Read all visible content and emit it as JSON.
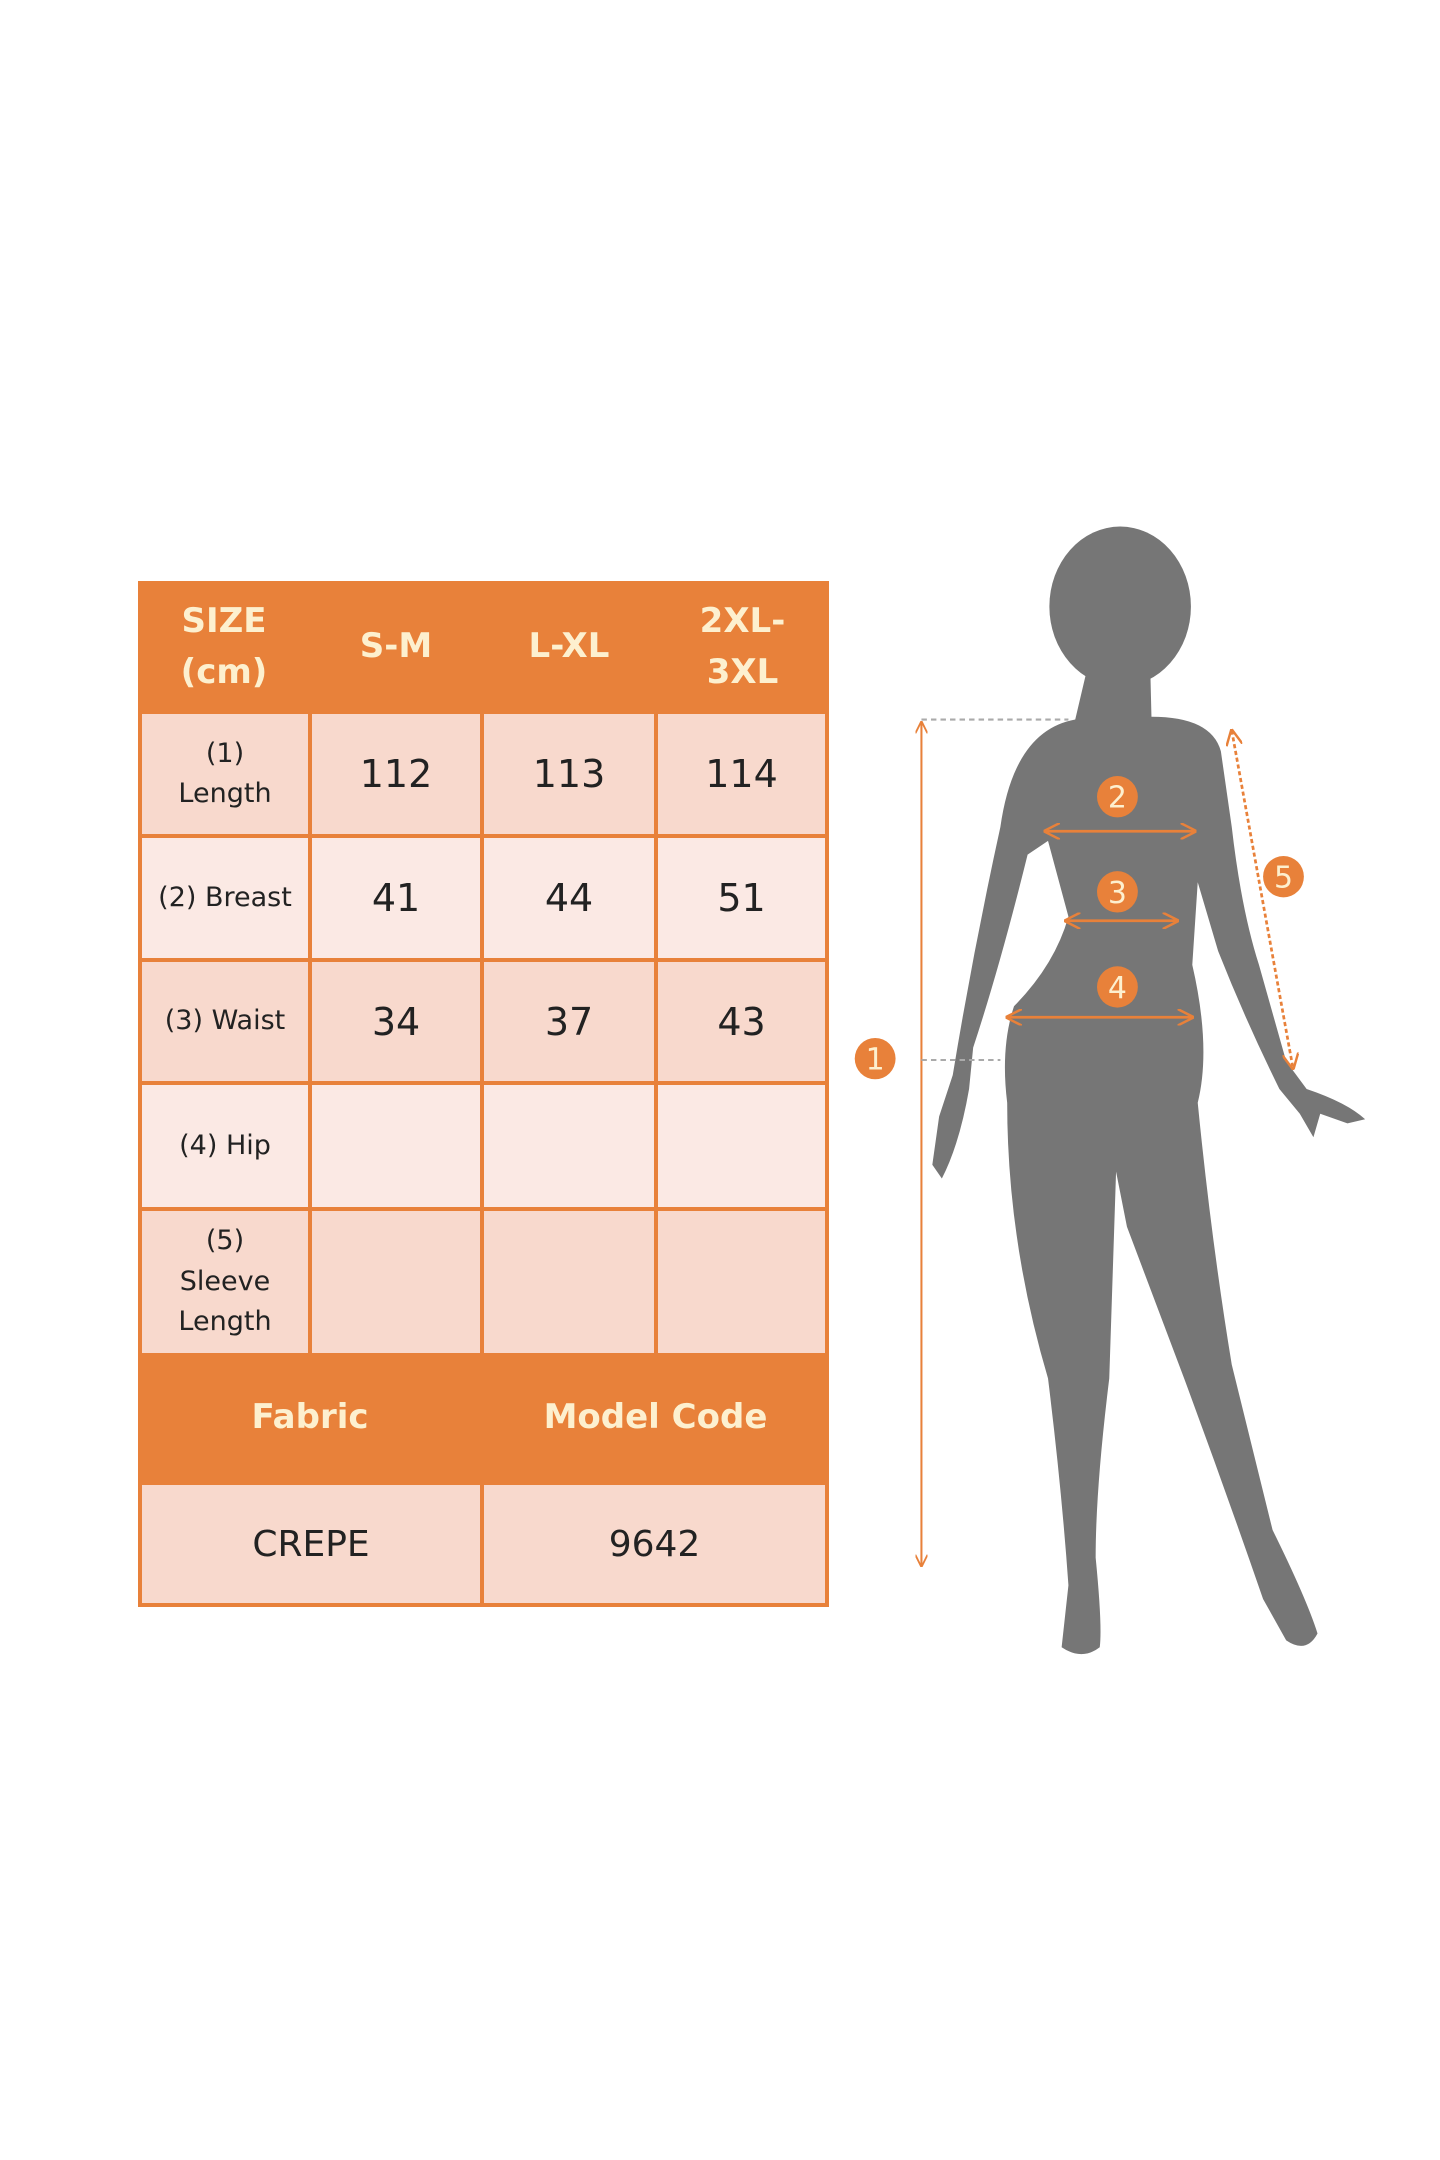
{
  "size_table": {
    "columns": [
      "SIZE (cm)",
      "S-M",
      "L-XL",
      "2XL-3XL"
    ],
    "header_lines": [
      [
        "SIZE",
        "(cm)"
      ],
      [
        "S-M"
      ],
      [
        "L-XL"
      ],
      [
        "2XL-",
        "3XL"
      ]
    ],
    "rows": [
      {
        "label": [
          "(1)",
          "Length"
        ],
        "values": [
          "112",
          "113",
          "114"
        ]
      },
      {
        "label": [
          "(2) Breast"
        ],
        "values": [
          "41",
          "44",
          "51"
        ]
      },
      {
        "label": [
          "(3) Waist"
        ],
        "values": [
          "34",
          "37",
          "43"
        ]
      },
      {
        "label": [
          "(4) Hip"
        ],
        "values": [
          "",
          "",
          ""
        ]
      },
      {
        "label": [
          "(5)",
          "Sleeve",
          "Length"
        ],
        "values": [
          "",
          "",
          ""
        ]
      }
    ]
  },
  "info_table": {
    "fabric_label": "Fabric",
    "model_code_label": "Model Code",
    "fabric_value": "CREPE",
    "model_code_value": "9642"
  },
  "figure": {
    "markers": [
      "1",
      "2",
      "3",
      "4",
      "5"
    ],
    "accent_color": "#e8813a",
    "silhouette_color": "#767676"
  },
  "colors": {
    "header": "#e8813a",
    "header_text": "#fdf0cf",
    "cell_dark": "#f8d9cd",
    "cell_light": "#fbe9e4"
  }
}
